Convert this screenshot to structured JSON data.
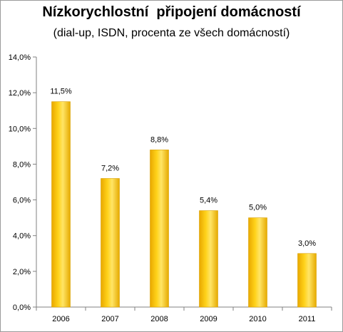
{
  "chart_data": {
    "type": "bar",
    "title": "Nízkorychlostní  připojení domácností",
    "subtitle": "(dial-up, ISDN, procenta ze všech domácností)",
    "categories": [
      "2006",
      "2007",
      "2008",
      "2009",
      "2010",
      "2011"
    ],
    "values": [
      11.5,
      7.2,
      8.8,
      5.4,
      5.0,
      3.0
    ],
    "data_labels": [
      "11,5%",
      "7,2%",
      "8,8%",
      "5,4%",
      "5,0%",
      "3,0%"
    ],
    "ylim": [
      0,
      14
    ],
    "yticks": [
      0,
      2,
      4,
      6,
      8,
      10,
      12,
      14
    ],
    "ytick_labels": [
      "0,0%",
      "2,0%",
      "4,0%",
      "6,0%",
      "8,0%",
      "10,0%",
      "12,0%",
      "14,0%"
    ],
    "xlabel": "",
    "ylabel": "",
    "grid": false,
    "legend": "none",
    "colors": {
      "bar_fill": "#FFC000",
      "bar_light": "#FFE566",
      "bar_dark": "#E0A800",
      "axis": "#808080"
    }
  }
}
